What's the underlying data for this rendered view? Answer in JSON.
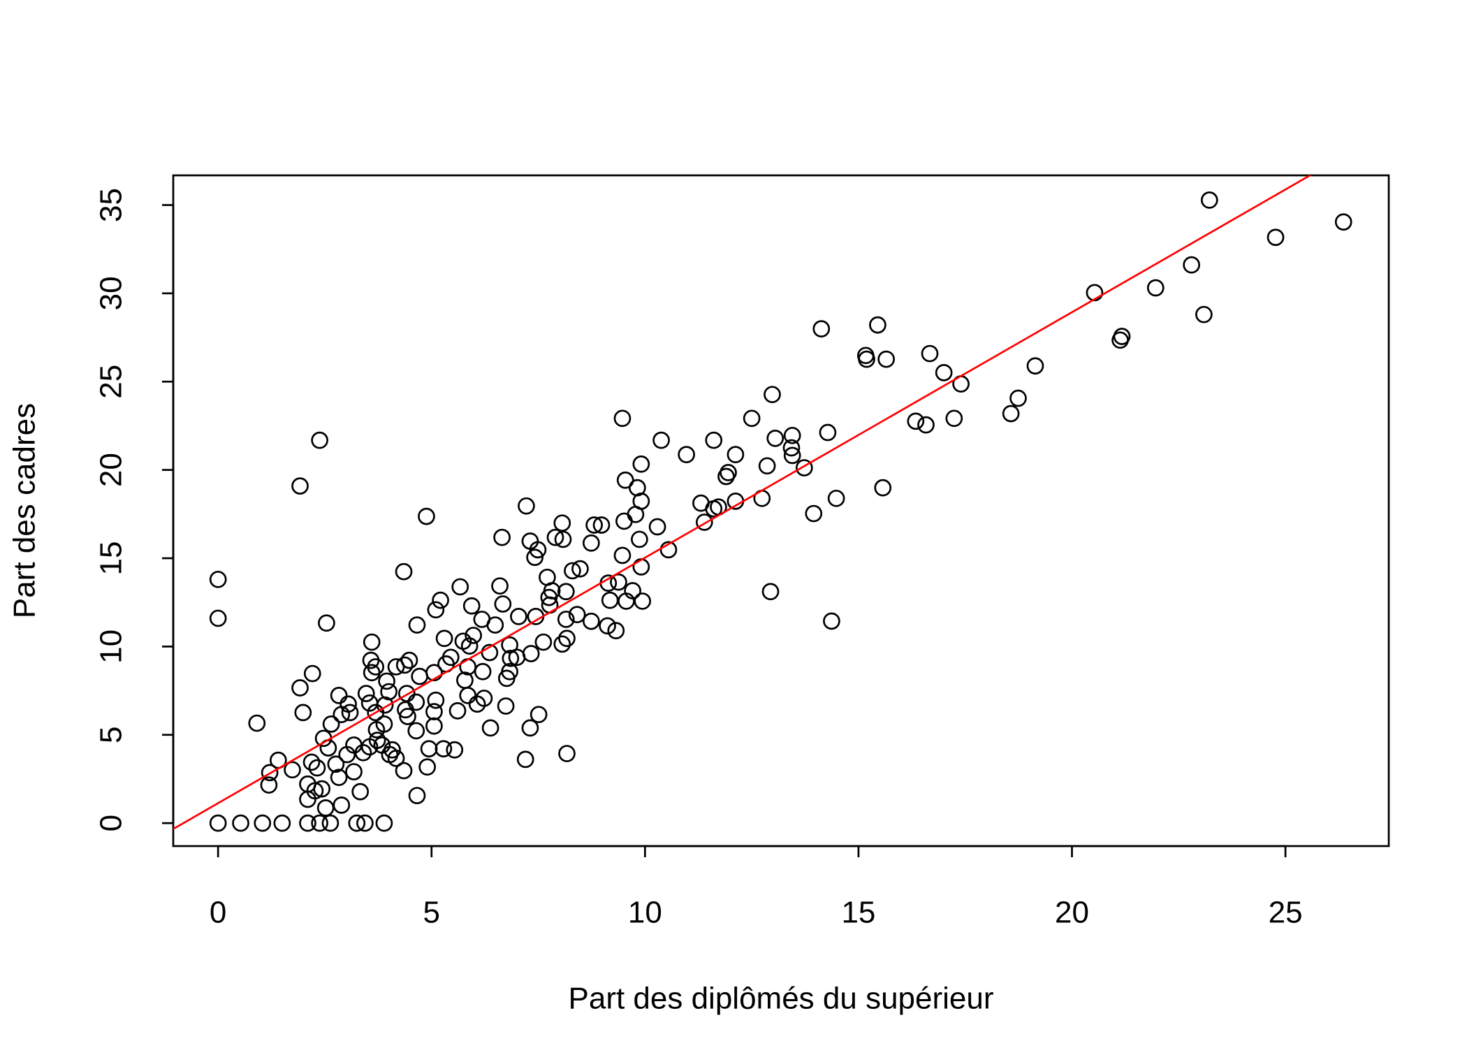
{
  "chart_data": {
    "type": "scatter",
    "x_label": "Part des diplômés du supérieur",
    "y_label": "Part des cadres",
    "x": [
      0,
      0,
      0,
      0.53,
      1.04,
      1.5,
      2.1,
      2.38,
      2.63,
      3.25,
      3.44,
      3.89,
      0.91,
      1.21,
      1.19,
      1.41,
      1.74,
      1.92,
      2.38,
      2.54,
      1.99,
      1.92,
      2.21,
      2.1,
      2.1,
      2.19,
      2.32,
      2.27,
      2.43,
      2.52,
      2.89,
      2.58,
      2.47,
      2.65,
      2.83,
      2.89,
      3.05,
      3.09,
      2.83,
      2.76,
      3.18,
      3.33,
      3.18,
      3.02,
      3.4,
      3.55,
      3.47,
      3.6,
      3.58,
      3.69,
      3.6,
      3.69,
      3.71,
      3.55,
      3.73,
      3.84,
      3.89,
      3.91,
      3.95,
      4.0,
      4.02,
      4.08,
      4.17,
      4.17,
      4.35,
      4.39,
      4.44,
      4.42,
      4.64,
      4.35,
      4.37,
      4.48,
      4.66,
      4.66,
      4.64,
      4.72,
      4.88,
      4.94,
      4.9,
      5.06,
      5.06,
      5.1,
      5.06,
      5.1,
      5.21,
      5.3,
      5.34,
      5.28,
      5.54,
      5.45,
      5.67,
      5.61,
      5.74,
      5.85,
      5.78,
      5.85,
      5.94,
      5.98,
      5.89,
      6.07,
      6.2,
      6.18,
      6.23,
      6.36,
      6.38,
      6.49,
      6.6,
      6.65,
      6.67,
      6.74,
      6.76,
      6.83,
      6.85,
      6.83,
      7.0,
      7.04,
      7.2,
      7.22,
      7.31,
      7.33,
      7.31,
      7.44,
      7.42,
      7.49,
      7.51,
      7.62,
      7.71,
      7.75,
      7.82,
      7.77,
      7.9,
      8.06,
      8.08,
      8.06,
      8.15,
      8.15,
      8.17,
      8.17,
      8.3,
      8.41,
      8.48,
      8.74,
      8.81,
      8.98,
      8.74,
      9.12,
      9.18,
      9.14,
      9.38,
      9.32,
      9.47,
      9.47,
      9.56,
      9.51,
      9.54,
      9.71,
      9.78,
      9.82,
      9.87,
      9.91,
      9.91,
      9.91,
      9.94,
      10.29,
      10.38,
      10.55,
      10.97,
      11.31,
      11.39,
      11.61,
      11.61,
      11.72,
      11.9,
      11.95,
      12.12,
      12.12,
      12.5,
      12.74,
      12.86,
      12.94,
      12.98,
      13.05,
      13.45,
      13.43,
      13.45,
      13.73,
      13.95,
      14.13,
      14.28,
      14.37,
      14.48,
      15.17,
      15.19,
      15.45,
      15.57,
      15.65,
      16.34,
      16.58,
      16.67,
      17.0,
      17.24,
      17.4,
      18.57,
      18.74,
      19.14,
      20.53,
      21.13,
      21.17,
      21.96,
      22.8,
      23.09,
      23.22,
      24.77,
      26.36
    ],
    "values": [
      13.8,
      11.6,
      0,
      0,
      0,
      0,
      0,
      0,
      0,
      0,
      0,
      0,
      5.66,
      2.86,
      2.16,
      3.56,
      3.02,
      19.09,
      21.68,
      11.33,
      6.26,
      7.66,
      8.47,
      2.21,
      1.35,
      3.45,
      3.13,
      1.83,
      1.94,
      0.86,
      1.02,
      4.26,
      4.8,
      5.61,
      7.23,
      6.15,
      6.74,
      6.26,
      2.59,
      3.34,
      4.42,
      1.78,
      2.91,
      3.88,
      3.99,
      6.8,
      7.34,
      10.25,
      9.22,
      8.85,
      8.52,
      6.26,
      5.29,
      4.32,
      4.69,
      4.42,
      5.61,
      6.69,
      8.04,
      7.44,
      3.88,
      4.15,
      3.67,
      8.85,
      2.97,
      6.42,
      6.04,
      7.34,
      6.85,
      14.24,
      8.95,
      9.22,
      11.22,
      1.56,
      5.23,
      8.31,
      17.37,
      4.21,
      3.18,
      5.5,
      6.31,
      6.96,
      8.52,
      12.08,
      12.62,
      10.46,
      9.01,
      4.21,
      4.15,
      9.39,
      13.38,
      6.36,
      10.3,
      8.85,
      8.09,
      7.23,
      12.3,
      10.63,
      10.03,
      6.74,
      8.58,
      11.54,
      7.07,
      9.66,
      5.39,
      11.22,
      13.43,
      16.18,
      12.41,
      6.63,
      8.2,
      8.58,
      9.33,
      10.09,
      9.39,
      11.7,
      3.61,
      17.96,
      5.39,
      9.6,
      15.97,
      11.7,
      15.05,
      15.48,
      6.15,
      10.25,
      13.92,
      12.78,
      13.16,
      12.35,
      16.18,
      16.99,
      16.07,
      10.14,
      11.54,
      13.11,
      10.46,
      3.94,
      14.29,
      11.81,
      14.4,
      15.86,
      16.88,
      16.88,
      11.43,
      11.17,
      12.62,
      13.59,
      13.65,
      10.9,
      15.16,
      22.92,
      12.57,
      17.1,
      19.42,
      13.16,
      17.48,
      18.99,
      16.07,
      20.33,
      18.23,
      14.51,
      12.57,
      16.78,
      21.68,
      15.48,
      20.87,
      18.12,
      17.04,
      21.68,
      17.8,
      17.9,
      19.63,
      19.85,
      20.87,
      18.23,
      22.92,
      18.39,
      20.23,
      13.11,
      24.27,
      21.79,
      21.95,
      21.25,
      20.82,
      20.12,
      17.53,
      27.99,
      22.12,
      11.44,
      18.39,
      26.48,
      26.27,
      28.21,
      18.99,
      26.27,
      22.76,
      22.55,
      26.59,
      25.51,
      22.92,
      24.87,
      23.19,
      24.06,
      25.89,
      30.04,
      27.35,
      27.56,
      30.31,
      31.61,
      28.8,
      35.28,
      33.17,
      34.04
    ],
    "point_color": "#000000",
    "fit_line": {
      "intercept": 1.13,
      "slope": 1.39,
      "color": "#ff0000"
    },
    "xlim": [
      -1.05,
      27.42
    ],
    "ylim": [
      -1.3,
      36.68
    ],
    "xticks": [
      0,
      5,
      10,
      15,
      20,
      25
    ],
    "yticks": [
      0,
      5,
      10,
      15,
      20,
      25,
      30,
      35
    ]
  }
}
